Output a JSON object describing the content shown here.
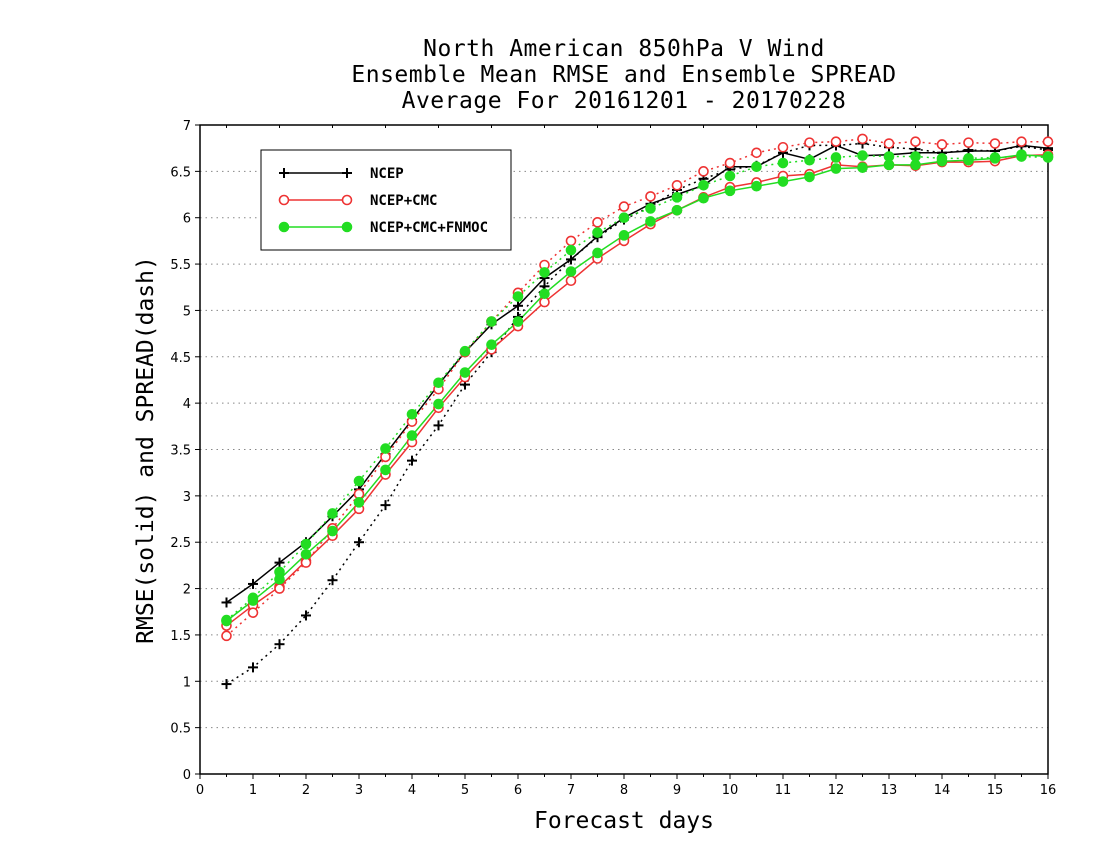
{
  "chart_data": {
    "type": "line",
    "title": [
      "North American 850hPa V Wind",
      "Ensemble Mean RMSE and Ensemble SPREAD",
      "Average For 20161201 - 20170228"
    ],
    "xlabel": "Forecast days",
    "ylabel": "RMSE(solid) and SPREAD(dash)",
    "xlim": [
      0,
      16
    ],
    "ylim": [
      0,
      7
    ],
    "xticks": [
      0,
      1,
      2,
      3,
      4,
      5,
      6,
      7,
      8,
      9,
      10,
      11,
      12,
      13,
      14,
      15,
      16
    ],
    "yticks": [
      0,
      0.5,
      1,
      1.5,
      2,
      2.5,
      3,
      3.5,
      4,
      4.5,
      5,
      5.5,
      6,
      6.5,
      7
    ],
    "ytick_labels": [
      "0",
      "0.5",
      "1",
      "1.5",
      "2",
      "2.5",
      "3",
      "3.5",
      "4",
      "4.5",
      "5",
      "5.5",
      "6",
      "6.5",
      "7"
    ],
    "grid": "horizontal dotted",
    "legend": {
      "placement": "top-left",
      "entries": [
        "NCEP",
        "NCEP+CMC",
        "NCEP+CMC+FNMOC"
      ]
    },
    "x": [
      0.5,
      1,
      1.5,
      2,
      2.5,
      3,
      3.5,
      4,
      4.5,
      5,
      5.5,
      6,
      6.5,
      7,
      7.5,
      8,
      8.5,
      9,
      9.5,
      10,
      10.5,
      11,
      11.5,
      12,
      12.5,
      13,
      13.5,
      14,
      14.5,
      15,
      15.5,
      16
    ],
    "series": [
      {
        "name": "NCEP",
        "metric": "RMSE",
        "style": "solid",
        "color": "#000000",
        "marker": "plus",
        "values": [
          1.85,
          2.05,
          2.28,
          2.5,
          2.78,
          3.07,
          3.45,
          3.82,
          4.2,
          4.55,
          4.85,
          5.05,
          5.35,
          5.55,
          5.8,
          6.0,
          6.15,
          6.25,
          6.35,
          6.55,
          6.55,
          6.7,
          6.63,
          6.78,
          6.67,
          6.68,
          6.7,
          6.7,
          6.72,
          6.72,
          6.78,
          6.75
        ]
      },
      {
        "name": "NCEP",
        "metric": "SPREAD",
        "style": "dotted",
        "color": "#000000",
        "marker": "plus",
        "values": [
          0.97,
          1.15,
          1.4,
          1.71,
          2.09,
          2.5,
          2.9,
          3.38,
          3.76,
          4.2,
          4.55,
          4.93,
          5.26,
          5.55,
          5.79,
          5.98,
          6.12,
          6.3,
          6.42,
          6.52,
          6.56,
          6.7,
          6.78,
          6.78,
          6.8,
          6.76,
          6.74,
          6.7,
          6.73,
          6.72,
          6.77,
          6.73
        ]
      },
      {
        "name": "NCEP+CMC",
        "metric": "RMSE",
        "style": "solid",
        "color": "#ee3333",
        "marker": "open-circle",
        "values": [
          1.6,
          1.82,
          2.02,
          2.3,
          2.57,
          2.86,
          3.23,
          3.58,
          3.95,
          4.28,
          4.58,
          4.83,
          5.09,
          5.32,
          5.56,
          5.75,
          5.93,
          6.08,
          6.22,
          6.33,
          6.38,
          6.45,
          6.47,
          6.57,
          6.55,
          6.57,
          6.56,
          6.6,
          6.6,
          6.61,
          6.67,
          6.68
        ]
      },
      {
        "name": "NCEP+CMC",
        "metric": "SPREAD",
        "style": "dotted",
        "color": "#ee3333",
        "marker": "open-circle",
        "values": [
          1.49,
          1.74,
          2.0,
          2.28,
          2.65,
          3.02,
          3.42,
          3.8,
          4.15,
          4.55,
          4.88,
          5.19,
          5.49,
          5.75,
          5.95,
          6.12,
          6.23,
          6.35,
          6.5,
          6.59,
          6.7,
          6.76,
          6.81,
          6.82,
          6.85,
          6.8,
          6.82,
          6.79,
          6.81,
          6.8,
          6.82,
          6.82
        ]
      },
      {
        "name": "NCEP+CMC+FNMOC",
        "metric": "RMSE",
        "style": "solid",
        "color": "#22dd22",
        "marker": "filled-circle",
        "values": [
          1.65,
          1.87,
          2.1,
          2.37,
          2.62,
          2.93,
          3.28,
          3.65,
          3.99,
          4.33,
          4.63,
          4.88,
          5.18,
          5.42,
          5.62,
          5.81,
          5.96,
          6.08,
          6.21,
          6.29,
          6.34,
          6.39,
          6.44,
          6.53,
          6.54,
          6.57,
          6.57,
          6.61,
          6.62,
          6.64,
          6.68,
          6.66
        ]
      },
      {
        "name": "NCEP+CMC+FNMOC",
        "metric": "SPREAD",
        "style": "dotted",
        "color": "#22dd22",
        "marker": "filled-circle",
        "values": [
          1.66,
          1.9,
          2.18,
          2.48,
          2.81,
          3.16,
          3.51,
          3.88,
          4.22,
          4.56,
          4.88,
          5.15,
          5.41,
          5.65,
          5.84,
          6.0,
          6.1,
          6.22,
          6.35,
          6.45,
          6.55,
          6.59,
          6.62,
          6.65,
          6.67,
          6.66,
          6.66,
          6.64,
          6.64,
          6.65,
          6.66,
          6.65
        ]
      }
    ]
  }
}
